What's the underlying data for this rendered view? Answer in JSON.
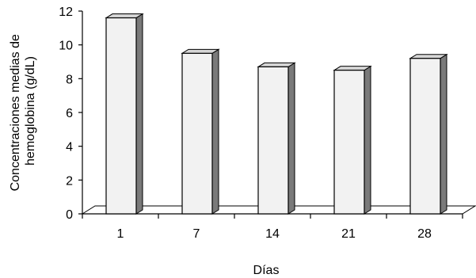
{
  "chart_data": {
    "type": "bar",
    "categories": [
      "1",
      "7",
      "14",
      "21",
      "28"
    ],
    "values": [
      11.6,
      9.5,
      8.7,
      8.5,
      9.2
    ],
    "title": "",
    "xlabel": "Días",
    "ylabel": "Concentraciones medias de hemoglobina (g/dL)",
    "ylabel_lines": [
      "Concentraciones medias de",
      "hemoglobina (g/dL)"
    ],
    "ylim": [
      0,
      12
    ],
    "yticks": [
      0,
      2,
      4,
      6,
      8,
      10,
      12
    ],
    "grid": false,
    "legend": "none",
    "style": "3d-bar",
    "colors": {
      "bar_front": "#f2f2f2",
      "bar_side": "#7a7a7a",
      "bar_top": "#d6d6d6",
      "stroke": "#000000"
    }
  }
}
